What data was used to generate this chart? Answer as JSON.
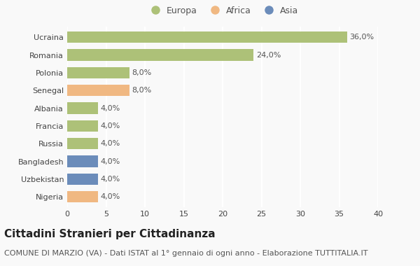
{
  "categories": [
    "Ucraina",
    "Romania",
    "Polonia",
    "Senegal",
    "Albania",
    "Francia",
    "Russia",
    "Bangladesh",
    "Uzbekistan",
    "Nigeria"
  ],
  "values": [
    36.0,
    24.0,
    8.0,
    8.0,
    4.0,
    4.0,
    4.0,
    4.0,
    4.0,
    4.0
  ],
  "labels": [
    "36,0%",
    "24,0%",
    "8,0%",
    "8,0%",
    "4,0%",
    "4,0%",
    "4,0%",
    "4,0%",
    "4,0%",
    "4,0%"
  ],
  "continents": [
    "Europa",
    "Europa",
    "Europa",
    "Africa",
    "Europa",
    "Europa",
    "Europa",
    "Asia",
    "Asia",
    "Africa"
  ],
  "colors": {
    "Europa": "#adc178",
    "Africa": "#f0b882",
    "Asia": "#6b8cba"
  },
  "legend_order": [
    "Europa",
    "Africa",
    "Asia"
  ],
  "title": "Cittadini Stranieri per Cittadinanza",
  "subtitle": "COMUNE DI MARZIO (VA) - Dati ISTAT al 1° gennaio di ogni anno - Elaborazione TUTTITALIA.IT",
  "xlim": [
    0,
    40
  ],
  "xticks": [
    0,
    5,
    10,
    15,
    20,
    25,
    30,
    35,
    40
  ],
  "background_color": "#f9f9f9",
  "grid_color": "#ffffff",
  "bar_height": 0.65,
  "title_fontsize": 11,
  "subtitle_fontsize": 8,
  "label_fontsize": 8,
  "tick_fontsize": 8,
  "legend_fontsize": 9
}
